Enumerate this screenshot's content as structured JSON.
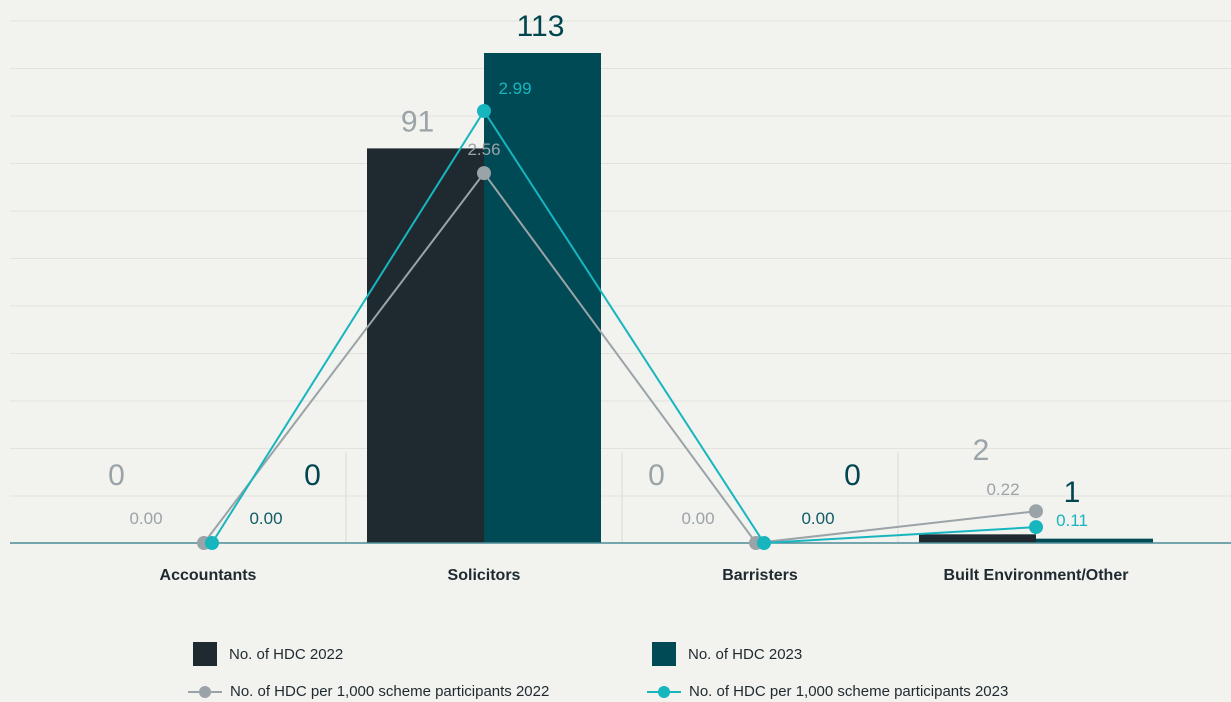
{
  "chart_data": {
    "type": "bar",
    "categories": [
      "Accountants",
      "Solicitors",
      "Barristers",
      "Built Environment/Other"
    ],
    "ylim": [
      0,
      113
    ],
    "grid": true,
    "legend_position": "bottom",
    "bar_series": [
      {
        "name": "No. of HDC 2022",
        "values": [
          0,
          91,
          0,
          2
        ],
        "labels": [
          "0",
          "91",
          "0",
          "2"
        ],
        "color": "#1f2a30",
        "label_color": "#9aa3a8"
      },
      {
        "name": "No. of HDC 2023",
        "values": [
          0,
          113,
          0,
          1
        ],
        "labels": [
          "0",
          "113",
          "0",
          "1"
        ],
        "color": "#004a55",
        "label_color": "#00454f"
      }
    ],
    "line_series": [
      {
        "name": "No. of HDC per 1,000 scheme participants 2022",
        "values": [
          0.0,
          2.56,
          0.0,
          0.22
        ],
        "labels": [
          "0.00",
          "2.56",
          "0.00",
          "0.22"
        ],
        "color": "#9aa3a8",
        "label_color": "#9aa3a8"
      },
      {
        "name": "No. of HDC per 1,000 scheme participants 2023",
        "values": [
          0.0,
          2.99,
          0.0,
          0.11
        ],
        "labels": [
          "0.00",
          "2.99",
          "0.00",
          "0.11"
        ],
        "color": "#17b6bf",
        "label_color_zero": "#0f5c66",
        "label_color": "#17b6bf"
      }
    ],
    "line_ylim": [
      0,
      3.6
    ]
  }
}
